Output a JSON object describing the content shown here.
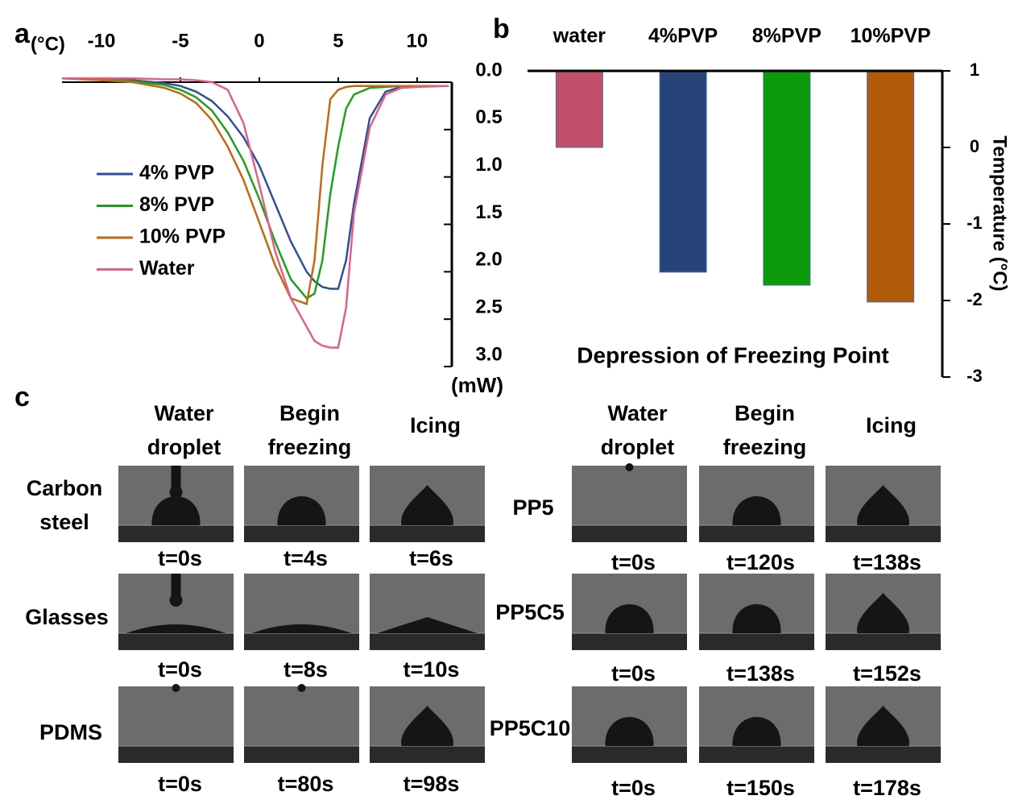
{
  "chart_data": [
    {
      "type": "line",
      "panel_label": "a",
      "x_unit": "(°C)",
      "y_unit": "(mW)",
      "x": [
        -12.5,
        -10,
        -8,
        -6,
        -5,
        -4,
        -3,
        -2,
        -1,
        0,
        1,
        2,
        3,
        3.5,
        4,
        4.5,
        5,
        5.5,
        6,
        7,
        8,
        9,
        10,
        12
      ],
      "xlim": [
        -12.5,
        12.2
      ],
      "xticks": [
        -10,
        -5,
        0,
        5,
        10
      ],
      "ylim": [
        0,
        3
      ],
      "y_reversed": true,
      "yticks": [
        {
          "value": 0,
          "label": "0.0"
        },
        0.5,
        {
          "value": 1,
          "label": "1.0"
        },
        1.5,
        {
          "value": 2,
          "label": "2.0"
        },
        2.5,
        {
          "value": 3,
          "label": "3.0"
        }
      ],
      "legend": "left",
      "series": [
        {
          "name": "4% PVP",
          "color": "#2f4f9a",
          "values": [
            -0.04,
            -0.03,
            -0.02,
            0.01,
            0.04,
            0.1,
            0.2,
            0.36,
            0.58,
            0.88,
            1.28,
            1.68,
            2.0,
            2.1,
            2.16,
            2.18,
            2.18,
            1.88,
            1.28,
            0.38,
            0.1,
            0.05,
            0.04,
            0.04
          ]
        },
        {
          "name": "8% PVP",
          "color": "#1ea01e",
          "values": [
            -0.04,
            -0.03,
            -0.01,
            0.03,
            0.08,
            0.16,
            0.3,
            0.53,
            0.83,
            1.23,
            1.68,
            2.08,
            2.28,
            2.23,
            1.88,
            1.18,
            0.68,
            0.28,
            0.13,
            0.06,
            0.05,
            0.04,
            0.04,
            0.04
          ]
        },
        {
          "name": "10% PVP",
          "color": "#c06a10",
          "values": [
            -0.04,
            -0.02,
            0,
            0.06,
            0.12,
            0.22,
            0.4,
            0.68,
            1.03,
            1.48,
            1.93,
            2.28,
            2.34,
            1.88,
            0.88,
            0.18,
            0.08,
            0.05,
            0.04,
            0.04,
            0.04,
            0.04,
            0.04,
            0.04
          ]
        },
        {
          "name": "Water",
          "color": "#e0608a",
          "values": [
            -0.04,
            -0.04,
            -0.04,
            -0.03,
            -0.03,
            -0.02,
            0,
            0.08,
            0.43,
            1.08,
            1.78,
            2.28,
            2.58,
            2.73,
            2.78,
            2.8,
            2.8,
            2.38,
            1.38,
            0.48,
            0.13,
            0.06,
            0.05,
            0.04
          ]
        }
      ]
    },
    {
      "type": "bar",
      "panel_label": "b",
      "annotation": "Depression of Freezing Point",
      "ylabel": "Temperature (°C)",
      "categories": [
        "water",
        "4%PVP",
        "8%PVP",
        "10%PVP"
      ],
      "values": [
        0,
        -1.63,
        -1.8,
        -2.02
      ],
      "colors": [
        "#c0506a",
        "#264478",
        "#0a9a0a",
        "#b05a0a"
      ],
      "ylim": [
        -3,
        1
      ],
      "yticks": [
        1,
        0,
        -1,
        -2,
        -3
      ]
    }
  ],
  "panel_c": {
    "label": "c",
    "left": {
      "headers": [
        [
          "Water",
          "droplet"
        ],
        [
          "Begin",
          "freezing"
        ],
        [
          "Icing"
        ]
      ],
      "rows": [
        {
          "sample": [
            "Carbon",
            "steel"
          ],
          "times": [
            "t=0s",
            "t=4s",
            "t=6s"
          ]
        },
        {
          "sample": [
            "Glasses"
          ],
          "times": [
            "t=0s",
            "t=8s",
            "t=10s"
          ]
        },
        {
          "sample": [
            "PDMS"
          ],
          "times": [
            "t=0s",
            "t=80s",
            "t=98s"
          ]
        }
      ]
    },
    "right": {
      "headers": [
        [
          "Water",
          "droplet"
        ],
        [
          "Begin",
          "freezing"
        ],
        [
          "Icing"
        ]
      ],
      "rows": [
        {
          "sample": [
            "PP5"
          ],
          "times": [
            "t=0s",
            "t=120s",
            "t=138s"
          ]
        },
        {
          "sample": [
            "PP5C5"
          ],
          "times": [
            "t=0s",
            "t=138s",
            "t=152s"
          ]
        },
        {
          "sample": [
            "PP5C10"
          ],
          "times": [
            "t=0s",
            "t=150s",
            "t=178s"
          ]
        }
      ]
    }
  }
}
